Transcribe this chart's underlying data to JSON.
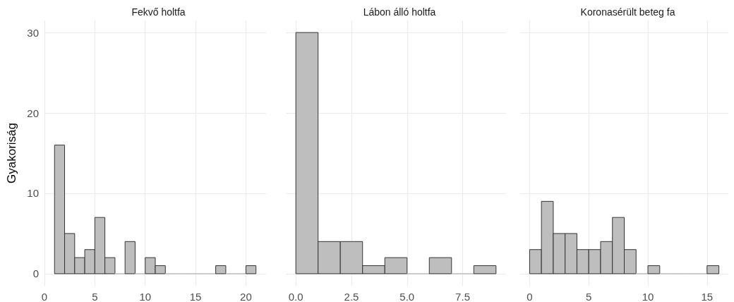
{
  "chart_data": [
    {
      "type": "histogram",
      "title": "Fekvő holtfa",
      "ylabel": "Gyakoriság",
      "bins": [
        1,
        2,
        3,
        4,
        5,
        6,
        7,
        8,
        9,
        10,
        11,
        12,
        13,
        14,
        15,
        16,
        17,
        18,
        19,
        20,
        21
      ],
      "values": [
        16,
        5,
        2,
        3,
        7,
        2,
        0,
        4,
        0,
        2,
        1,
        0,
        0,
        0,
        0,
        0,
        1,
        0,
        0,
        1
      ],
      "color": "#bebebe",
      "xlim": [
        0,
        22
      ],
      "xticks": [
        0,
        5,
        10,
        15,
        20
      ],
      "ylim": [
        -1.5,
        31.5
      ],
      "yticks": [
        0,
        10,
        20,
        30
      ],
      "grid": true
    },
    {
      "type": "histogram",
      "title": "Lábon álló holtfa",
      "bins": [
        0,
        1,
        2,
        3,
        4,
        5,
        6,
        7,
        8,
        9
      ],
      "values": [
        30,
        4,
        4,
        1,
        2,
        0,
        2,
        0,
        1
      ],
      "color": "#bebebe",
      "xlim": [
        -0.45,
        9.45
      ],
      "xticks": [
        {
          "value": 0,
          "label": "0.0"
        },
        2.5,
        {
          "value": 5,
          "label": "5.0"
        },
        7.5
      ],
      "ylim": [
        -1.5,
        31.5
      ],
      "yticks": [
        0,
        10,
        20,
        30
      ],
      "grid": true,
      "tick_labels": "x"
    },
    {
      "type": "histogram",
      "title": "Koronasérült beteg fa",
      "bins": [
        0,
        1,
        2,
        3,
        4,
        5,
        6,
        7,
        8,
        9,
        10,
        11,
        12,
        13,
        14,
        15,
        16
      ],
      "values": [
        3,
        9,
        5,
        5,
        3,
        3,
        4,
        7,
        3,
        0,
        1,
        0,
        0,
        0,
        0,
        1
      ],
      "color": "#bebebe",
      "xlim": [
        -0.8,
        16.8
      ],
      "xticks": [
        0,
        5,
        10,
        15
      ],
      "ylim": [
        -1.5,
        31.5
      ],
      "yticks": [
        0,
        10,
        20,
        30
      ],
      "grid": true,
      "tick_labels": "x"
    }
  ]
}
